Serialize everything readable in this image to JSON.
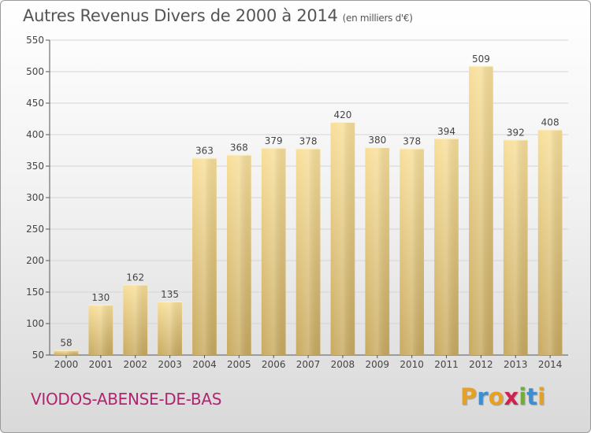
{
  "title": "Autres Revenus Divers de 2000 à 2014",
  "subtitle": "(en milliers d'€)",
  "commune": "VIODOS-ABENSE-DE-BAS",
  "logo": {
    "letters": [
      "P",
      "r",
      "o",
      "x",
      "i",
      "t",
      "i"
    ],
    "colors": [
      "#e8a020",
      "#3a8fd0",
      "#e8a020",
      "#d02050",
      "#70b030",
      "#3a8fd0",
      "#e8a020"
    ]
  },
  "chart_data": {
    "type": "bar",
    "title": "Autres Revenus Divers de 2000 à 2014",
    "subtitle": "(en milliers d'€)",
    "categories": [
      "2000",
      "2001",
      "2002",
      "2003",
      "2004",
      "2005",
      "2006",
      "2007",
      "2008",
      "2009",
      "2010",
      "2011",
      "2012",
      "2013",
      "2014"
    ],
    "values": [
      58,
      130,
      162,
      135,
      363,
      368,
      379,
      378,
      420,
      380,
      378,
      394,
      509,
      392,
      408
    ],
    "xlabel": "",
    "ylabel": "",
    "ylim": [
      50,
      550
    ],
    "yticks": [
      50,
      100,
      150,
      200,
      250,
      300,
      350,
      400,
      450,
      500,
      550
    ],
    "grid": true,
    "bar_color": "#e8c878"
  }
}
